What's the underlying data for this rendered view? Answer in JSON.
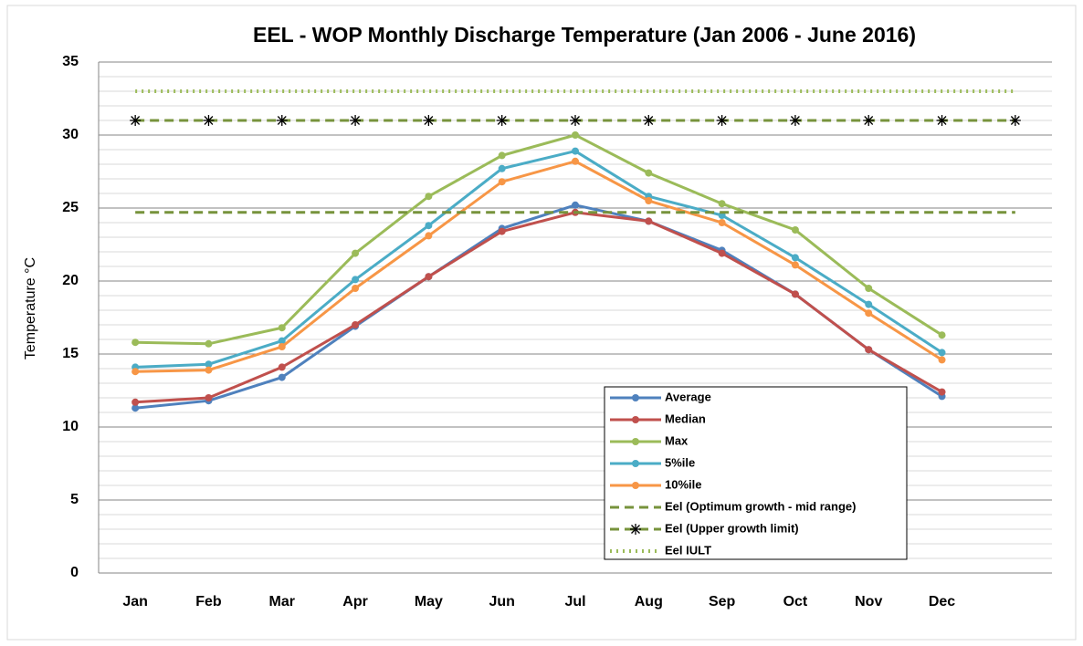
{
  "chart_data": {
    "type": "line",
    "title": "EEL - WOP Monthly Discharge Temperature (Jan 2006 - June 2016)",
    "y_label": "Temperature °C",
    "categories": [
      "Jan",
      "Feb",
      "Mar",
      "Apr",
      "May",
      "Jun",
      "Jul",
      "Aug",
      "Sep",
      "Oct",
      "Nov",
      "Dec",
      null
    ],
    "ylim": [
      0,
      35
    ],
    "yticks": [
      0,
      5,
      10,
      15,
      20,
      25,
      30,
      35
    ],
    "yminorticks": [
      1,
      2,
      3,
      4,
      6,
      7,
      8,
      9,
      11,
      12,
      13,
      14,
      16,
      17,
      18,
      19,
      21,
      22,
      23,
      24,
      26,
      27,
      28,
      29,
      31,
      32,
      33,
      34
    ],
    "grid": true,
    "legend": "lower right",
    "series": [
      {
        "name": "Average",
        "color": "#4f81bd",
        "dash": "solid",
        "marker": "circle",
        "values": [
          11.3,
          11.8,
          13.4,
          16.9,
          20.3,
          23.6,
          25.2,
          24.1,
          22.1,
          19.1,
          15.3,
          12.1,
          null
        ]
      },
      {
        "name": "Median",
        "color": "#c0504d",
        "dash": "solid",
        "marker": "circle",
        "values": [
          11.7,
          12.0,
          14.1,
          17.0,
          20.3,
          23.4,
          24.7,
          24.1,
          21.9,
          19.1,
          15.3,
          12.4,
          null
        ]
      },
      {
        "name": "Max",
        "color": "#9bbb59",
        "dash": "solid",
        "marker": "circle",
        "values": [
          15.8,
          15.7,
          16.8,
          21.9,
          25.8,
          28.6,
          30.0,
          27.4,
          25.3,
          23.5,
          19.5,
          16.3,
          null
        ]
      },
      {
        "name": "5%ile",
        "color": "#4bacc6",
        "dash": "solid",
        "marker": "circle",
        "values": [
          14.1,
          14.3,
          15.9,
          20.1,
          23.8,
          27.7,
          28.9,
          25.8,
          24.5,
          21.6,
          18.4,
          15.1,
          null
        ]
      },
      {
        "name": "10%ile",
        "color": "#f79646",
        "dash": "solid",
        "marker": "circle",
        "values": [
          13.8,
          13.9,
          15.5,
          19.5,
          23.1,
          26.8,
          28.2,
          25.5,
          24.0,
          21.1,
          17.8,
          14.6,
          null
        ]
      },
      {
        "name": "Eel (Optimum growth - mid range)",
        "color": "#77933c",
        "dash": "dashed",
        "marker": "none",
        "values": [
          24.7,
          24.7,
          24.7,
          24.7,
          24.7,
          24.7,
          24.7,
          24.7,
          24.7,
          24.7,
          24.7,
          24.7,
          24.7
        ]
      },
      {
        "name": "Eel (Upper growth limit)",
        "color": "#77933c",
        "dash": "dashed",
        "marker": "star",
        "values": [
          31,
          31,
          31,
          31,
          31,
          31,
          31,
          31,
          31,
          31,
          31,
          31,
          31
        ]
      },
      {
        "name": "Eel IULT",
        "color": "#9bbb59",
        "dash": "dotted",
        "marker": "none",
        "values": [
          33,
          33,
          33,
          33,
          33,
          33,
          33,
          33,
          33,
          33,
          33,
          33,
          33
        ]
      }
    ]
  }
}
